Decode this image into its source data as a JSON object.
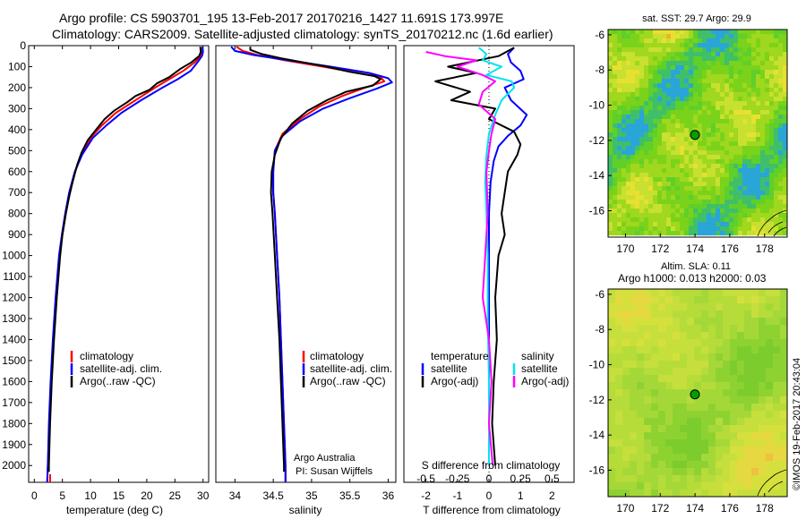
{
  "header": {
    "line1": "Argo profile: CS 5903701_195 13-Feb-2017 20170216_1427 11.691S 173.997E",
    "line2": "Climatology: CARS2009. Satellite-adjusted climatology: synTS_20170212.nc (1.6d earlier)"
  },
  "credits": {
    "program": "Argo Australia",
    "pi": "PI: Susan Wijffels",
    "vertical": "©IMOS 19-Feb-2017 20:43:04"
  },
  "colors": {
    "climatology": "#ff0000",
    "satellite_adj": "#0000ff",
    "argo": "#000000",
    "salinity_satellite": "#00e5ee",
    "salinity_argo": "#ff00ff",
    "map_sst_base": "#7ad31a",
    "map_sla_base": "#b6dc3a",
    "argo_marker": "#00a000"
  },
  "chart_data": [
    {
      "type": "line",
      "name": "temperature-panel",
      "xlabel": "temperature (deg C)",
      "ylabel": "",
      "xlim": [
        -1,
        31
      ],
      "ylim": [
        2080,
        0
      ],
      "x_ticks": [
        0,
        5,
        10,
        15,
        20,
        25,
        30
      ],
      "y_ticks": [
        0,
        100,
        200,
        300,
        400,
        500,
        600,
        700,
        800,
        900,
        1000,
        1100,
        1200,
        1300,
        1400,
        1500,
        1600,
        1700,
        1800,
        1900,
        2000
      ],
      "legend": [
        "climatology",
        "satellite-adj. clim.",
        "Argo(..raw -QC)"
      ],
      "series": [
        {
          "name": "climatology",
          "color": "#ff0000",
          "points": [
            [
              29.9,
              5
            ],
            [
              29.8,
              30
            ],
            [
              29.6,
              50
            ],
            [
              28.5,
              80
            ],
            [
              26.5,
              120
            ],
            [
              24.0,
              160
            ],
            [
              21.5,
              200
            ],
            [
              18.0,
              260
            ],
            [
              14.5,
              320
            ],
            [
              12.0,
              380
            ],
            [
              10.0,
              440
            ],
            [
              8.3,
              520
            ],
            [
              7.3,
              600
            ],
            [
              6.3,
              700
            ],
            [
              5.6,
              800
            ],
            [
              5.0,
              900
            ],
            [
              4.5,
              1000
            ],
            [
              3.9,
              1200
            ],
            [
              3.4,
              1400
            ],
            [
              3.0,
              1600
            ],
            [
              2.7,
              1800
            ],
            [
              2.4,
              2000
            ],
            [
              2.3,
              2080
            ]
          ]
        },
        {
          "name": "satellite-adj. clim.",
          "color": "#0000ff",
          "points": [
            [
              29.9,
              5
            ],
            [
              30.0,
              30
            ],
            [
              29.8,
              50
            ],
            [
              29.0,
              80
            ],
            [
              27.8,
              120
            ],
            [
              25.5,
              160
            ],
            [
              22.8,
              200
            ],
            [
              19.0,
              260
            ],
            [
              15.5,
              320
            ],
            [
              12.8,
              380
            ],
            [
              10.4,
              440
            ],
            [
              8.5,
              520
            ],
            [
              7.2,
              600
            ],
            [
              6.2,
              700
            ],
            [
              5.5,
              800
            ],
            [
              4.9,
              900
            ],
            [
              4.4,
              1000
            ],
            [
              3.8,
              1200
            ],
            [
              3.3,
              1400
            ],
            [
              2.9,
              1600
            ],
            [
              2.6,
              1800
            ],
            [
              2.4,
              2000
            ],
            [
              2.3,
              2080
            ]
          ]
        },
        {
          "name": "Argo(..raw -QC)",
          "color": "#000000",
          "points": [
            [
              29.5,
              5
            ],
            [
              29.6,
              30
            ],
            [
              29.3,
              50
            ],
            [
              27.9,
              80
            ],
            [
              26.0,
              110
            ],
            [
              24.0,
              150
            ],
            [
              21.8,
              180
            ],
            [
              20.5,
              210
            ],
            [
              18.0,
              240
            ],
            [
              16.5,
              270
            ],
            [
              14.2,
              310
            ],
            [
              12.5,
              350
            ],
            [
              11.0,
              400
            ],
            [
              9.5,
              450
            ],
            [
              8.4,
              510
            ],
            [
              7.6,
              570
            ],
            [
              6.9,
              640
            ],
            [
              6.2,
              720
            ],
            [
              5.6,
              800
            ],
            [
              5.0,
              900
            ],
            [
              4.6,
              1000
            ],
            [
              4.0,
              1200
            ],
            [
              3.5,
              1400
            ],
            [
              3.1,
              1600
            ],
            [
              2.8,
              1800
            ],
            [
              2.6,
              2000
            ],
            [
              2.6,
              2030
            ]
          ]
        }
      ]
    },
    {
      "type": "line",
      "name": "salinity-panel",
      "xlabel": "salinity",
      "ylabel": "",
      "xlim": [
        33.75,
        36.1
      ],
      "ylim": [
        2080,
        0
      ],
      "x_ticks": [
        34,
        34.5,
        35,
        35.5,
        36
      ],
      "legend": [
        "climatology",
        "satellite-adj. clim.",
        "Argo(..raw -QC)"
      ],
      "series": [
        {
          "name": "climatology",
          "color": "#ff0000",
          "points": [
            [
              34.02,
              5
            ],
            [
              34.1,
              25
            ],
            [
              34.3,
              45
            ],
            [
              34.65,
              70
            ],
            [
              35.15,
              100
            ],
            [
              35.6,
              130
            ],
            [
              35.9,
              150
            ],
            [
              35.95,
              170
            ],
            [
              35.7,
              200
            ],
            [
              35.4,
              240
            ],
            [
              35.1,
              290
            ],
            [
              34.85,
              350
            ],
            [
              34.62,
              420
            ],
            [
              34.52,
              500
            ],
            [
              34.5,
              600
            ],
            [
              34.5,
              700
            ],
            [
              34.52,
              800
            ],
            [
              34.55,
              1000
            ],
            [
              34.58,
              1200
            ],
            [
              34.6,
              1400
            ],
            [
              34.62,
              1600
            ],
            [
              34.64,
              1800
            ],
            [
              34.66,
              2000
            ],
            [
              34.66,
              2080
            ]
          ]
        },
        {
          "name": "satellite-adj. clim.",
          "color": "#0000ff",
          "points": [
            [
              33.95,
              5
            ],
            [
              34.0,
              25
            ],
            [
              34.25,
              45
            ],
            [
              34.7,
              70
            ],
            [
              35.25,
              100
            ],
            [
              35.75,
              130
            ],
            [
              36.0,
              155
            ],
            [
              36.05,
              175
            ],
            [
              35.85,
              205
            ],
            [
              35.5,
              250
            ],
            [
              35.15,
              300
            ],
            [
              34.85,
              360
            ],
            [
              34.62,
              430
            ],
            [
              34.52,
              500
            ],
            [
              34.5,
              600
            ],
            [
              34.5,
              700
            ],
            [
              34.52,
              800
            ],
            [
              34.55,
              1000
            ],
            [
              34.58,
              1200
            ],
            [
              34.6,
              1400
            ],
            [
              34.62,
              1600
            ],
            [
              34.64,
              1800
            ],
            [
              34.66,
              2000
            ],
            [
              34.66,
              2080
            ]
          ]
        },
        {
          "name": "Argo(..raw -QC)",
          "color": "#000000",
          "points": [
            [
              34.2,
              5
            ],
            [
              34.2,
              20
            ],
            [
              34.35,
              40
            ],
            [
              34.6,
              60
            ],
            [
              34.9,
              80
            ],
            [
              35.2,
              100
            ],
            [
              35.5,
              125
            ],
            [
              35.82,
              145
            ],
            [
              35.9,
              160
            ],
            [
              35.8,
              190
            ],
            [
              35.45,
              220
            ],
            [
              35.2,
              260
            ],
            [
              34.95,
              310
            ],
            [
              34.75,
              370
            ],
            [
              34.6,
              440
            ],
            [
              34.52,
              520
            ],
            [
              34.48,
              600
            ],
            [
              34.47,
              700
            ],
            [
              34.49,
              800
            ],
            [
              34.52,
              1000
            ],
            [
              34.55,
              1200
            ],
            [
              34.58,
              1400
            ],
            [
              34.6,
              1600
            ],
            [
              34.62,
              1800
            ],
            [
              34.64,
              2000
            ],
            [
              34.64,
              2030
            ]
          ]
        }
      ]
    },
    {
      "type": "line",
      "name": "difference-panel",
      "xlabel": "T difference from climatology",
      "x2label": "S difference from climatology",
      "xlim": [
        -2.7,
        2.7
      ],
      "x2lim": [
        -0.675,
        0.675
      ],
      "ylim": [
        2080,
        0
      ],
      "x_ticks": [
        -2,
        -1,
        0,
        1,
        2
      ],
      "x2_ticks": [
        "-0.5",
        "-0.25",
        "0",
        "0.25",
        "0.5"
      ],
      "x2_tick_values": [
        -0.5,
        -0.25,
        0,
        0.25,
        0.5
      ],
      "legend_groups": [
        {
          "title": "temperature",
          "items": [
            "satellite",
            "Argo(-adj)"
          ]
        },
        {
          "title": "salinity",
          "items": [
            "satellite",
            "Argo(-adj)"
          ]
        }
      ],
      "series": [
        {
          "name": "temperature satellite",
          "color": "#0000ff",
          "points": [
            [
              0.8,
              10
            ],
            [
              0.6,
              40
            ],
            [
              0.7,
              80
            ],
            [
              1.0,
              120
            ],
            [
              1.1,
              160
            ],
            [
              0.5,
              200
            ],
            [
              0.7,
              260
            ],
            [
              1.2,
              330
            ],
            [
              1.0,
              380
            ],
            [
              0.6,
              430
            ],
            [
              0.3,
              480
            ],
            [
              0.15,
              550
            ],
            [
              0.05,
              650
            ],
            [
              0.0,
              800
            ],
            [
              0.0,
              1000
            ],
            [
              0.0,
              1400
            ],
            [
              0.0,
              2000
            ]
          ]
        },
        {
          "name": "temperature Argo(-adj)",
          "color": "#000000",
          "points": [
            [
              0.8,
              10
            ],
            [
              0.3,
              50
            ],
            [
              -1.3,
              100
            ],
            [
              -0.4,
              130
            ],
            [
              -1.7,
              170
            ],
            [
              -0.6,
              220
            ],
            [
              -1.2,
              260
            ],
            [
              0.2,
              300
            ],
            [
              0.0,
              350
            ],
            [
              0.8,
              410
            ],
            [
              1.0,
              470
            ],
            [
              0.9,
              520
            ],
            [
              0.6,
              600
            ],
            [
              0.5,
              700
            ],
            [
              0.4,
              800
            ],
            [
              0.5,
              900
            ],
            [
              0.3,
              1000
            ],
            [
              0.2,
              1200
            ],
            [
              0.25,
              1400
            ],
            [
              0.15,
              1600
            ],
            [
              0.1,
              1800
            ],
            [
              0.2,
              2000
            ]
          ]
        },
        {
          "name": "salinity satellite",
          "color": "#00e5ee",
          "points": [
            [
              -0.08,
              10
            ],
            [
              -0.02,
              40
            ],
            [
              -0.05,
              70
            ],
            [
              0.1,
              100
            ],
            [
              -0.02,
              140
            ],
            [
              0.18,
              170
            ],
            [
              0.2,
              200
            ],
            [
              0.1,
              260
            ],
            [
              0.05,
              330
            ],
            [
              0.0,
              420
            ],
            [
              -0.02,
              520
            ],
            [
              -0.03,
              650
            ],
            [
              -0.02,
              800
            ],
            [
              -0.01,
              1000
            ],
            [
              -0.01,
              1300
            ],
            [
              0.0,
              1600
            ],
            [
              0.0,
              2000
            ]
          ]
        },
        {
          "name": "salinity Argo(-adj)",
          "color": "#ff00ff",
          "points": [
            [
              -0.5,
              30
            ],
            [
              -0.35,
              50
            ],
            [
              -0.1,
              70
            ],
            [
              -0.25,
              100
            ],
            [
              -0.05,
              140
            ],
            [
              0.05,
              170
            ],
            [
              -0.05,
              220
            ],
            [
              -0.08,
              280
            ],
            [
              0.05,
              350
            ],
            [
              0.02,
              420
            ],
            [
              0.0,
              500
            ],
            [
              -0.02,
              600
            ],
            [
              -0.01,
              800
            ],
            [
              -0.03,
              1000
            ],
            [
              -0.05,
              1200
            ],
            [
              0.0,
              1400
            ],
            [
              0.02,
              1600
            ],
            [
              0.0,
              1800
            ],
            [
              0.03,
              2000
            ]
          ]
        }
      ]
    },
    {
      "type": "heatmap",
      "name": "sst-map",
      "title": "sat. SST: 29.7 Argo: 29.9",
      "xlim": [
        169,
        179.3
      ],
      "ylim": [
        -17.5,
        -5.7
      ],
      "x_ticks": [
        170,
        172,
        174,
        176,
        178
      ],
      "y_ticks": [
        -6,
        -8,
        -10,
        -12,
        -14,
        -16
      ],
      "argo_position": [
        173.997,
        -11.691
      ]
    },
    {
      "type": "heatmap",
      "name": "sla-map",
      "title": "Altim. SLA: 0.11",
      "subtitle": "Argo h1000: 0.013 h2000: 0.03",
      "xlim": [
        169,
        179.3
      ],
      "ylim": [
        -17.5,
        -5.7
      ],
      "x_ticks": [
        170,
        172,
        174,
        176,
        178
      ],
      "y_ticks": [
        -6,
        -8,
        -10,
        -12,
        -14,
        -16
      ],
      "argo_position": [
        173.997,
        -11.691
      ]
    }
  ]
}
